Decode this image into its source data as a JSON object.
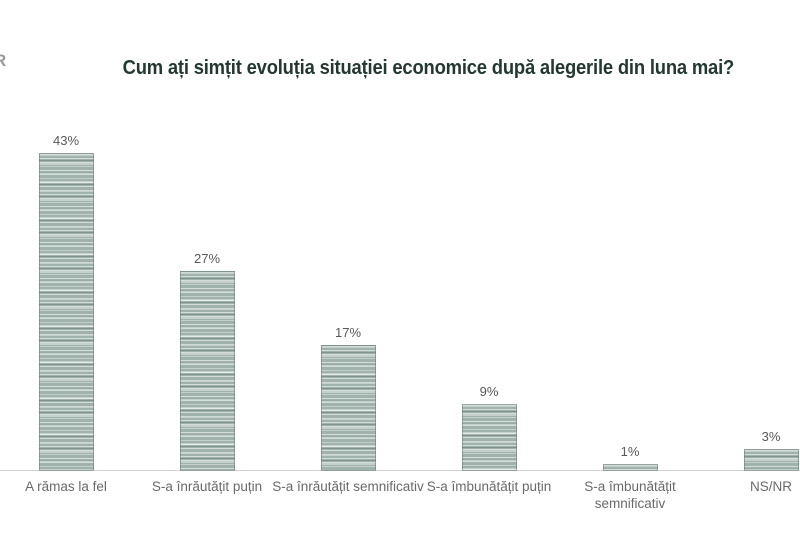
{
  "page": {
    "background": "#ffffff",
    "watermark_fragment": "R"
  },
  "title": {
    "text": "Cum ați simțit evoluția situației economice după alegerile din luna mai?",
    "color": "#233831"
  },
  "chart_data": {
    "type": "bar",
    "title": "Cum ați simțit evoluția situației economice după alegerile din luna mai?",
    "categories": [
      "A rămas la fel",
      "S-a înrăutățit puțin",
      "S-a înrăutățit semnificativ",
      "S-a îmbunătățit puțin",
      "S-a îmbunătățit semnificativ",
      "NS/NR"
    ],
    "tick_labels": [
      "A rămas la fel",
      "S-a înrăutățit puțin",
      "S-a înrăutățit semnificativ",
      "S-a îmbunătățit puțin",
      "S-a îmbunătățit\nsemnificativ",
      "NS/NR"
    ],
    "values": [
      43,
      27,
      17,
      9,
      1,
      3
    ],
    "value_labels": [
      "43%",
      "27%",
      "17%",
      "9%",
      "1%",
      "3%"
    ],
    "xlabel": "",
    "ylabel": "",
    "ylim": [
      0,
      45
    ],
    "grid": false,
    "legend": null,
    "bar_color": "#9fb3ac",
    "bar_texture": "horizontal-stripes",
    "value_label_color": "#595959",
    "category_label_color": "#6a6a6a",
    "axis_line_color": "#d2d2d2",
    "title_color": "#233831"
  }
}
